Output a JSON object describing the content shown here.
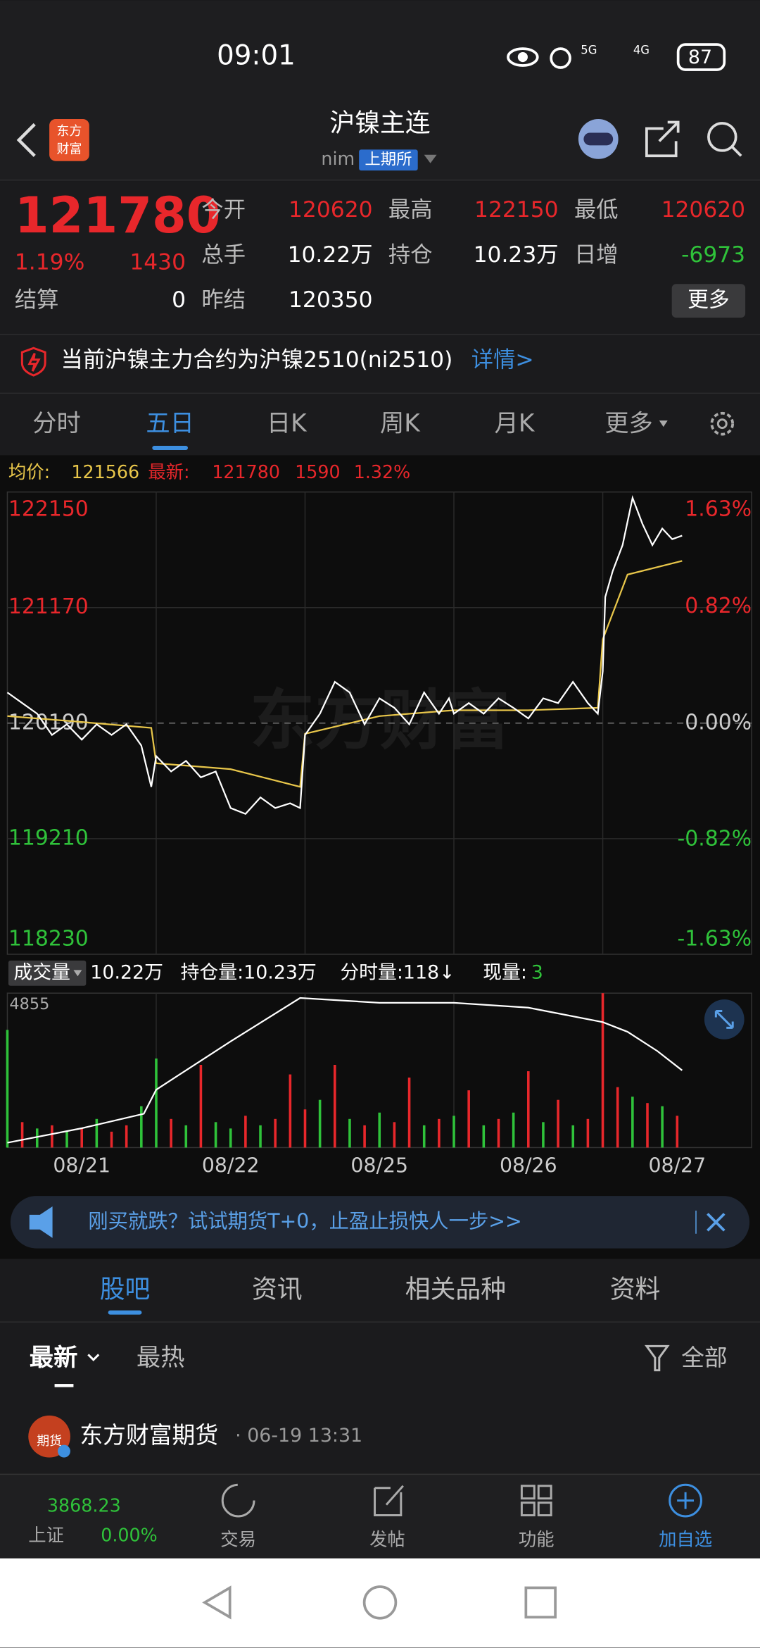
{
  "status": {
    "time": "09:01",
    "net1": "5G",
    "net2": "4G",
    "battery": "87"
  },
  "header": {
    "logo": [
      "东方",
      "财富"
    ],
    "title": "沪镍主连",
    "code": "nim",
    "exchange": "上期所"
  },
  "quote": {
    "price": "121780",
    "change_pct": "1.19%",
    "change": "1430",
    "fields": [
      {
        "label": "今开",
        "value": "120620"
      },
      {
        "label": "最高",
        "value": "122150"
      },
      {
        "label": "最低",
        "value": "120620"
      },
      {
        "label": "总手",
        "value": "10.22万"
      },
      {
        "label": "持仓",
        "value": "10.23万"
      },
      {
        "label": "日增",
        "value": "-6973"
      },
      {
        "label": "结算",
        "value": "0"
      },
      {
        "label": "昨结",
        "value": "120350"
      }
    ],
    "more": "更多"
  },
  "notice": {
    "text": "当前沪镍主力合约为沪镍2510(ni2510)",
    "link": "详情>"
  },
  "tabs": [
    "分时",
    "五日",
    "日K",
    "周K",
    "月K",
    "更多"
  ],
  "info": {
    "avg_label": "均价:",
    "avg": "121566",
    "last_label": "最新:",
    "last": "121780",
    "change": "1590",
    "pct": "1.32%"
  },
  "chart": {
    "watermark": "东方财富",
    "ylim": [
      118230,
      122150
    ],
    "yticks": [
      122150,
      121170,
      120190,
      119210,
      118230
    ],
    "y2lim": [
      -1.63,
      1.63
    ],
    "y2ticks": [
      {
        "value": 1.63,
        "label": "1.63%"
      },
      {
        "value": 0.82,
        "label": "0.82%"
      },
      {
        "value": 0,
        "label": "0.00%"
      },
      {
        "value": -0.82,
        "label": "-0.82%"
      },
      {
        "value": -1.63,
        "label": "-1.63%"
      }
    ],
    "xlim": [
      0,
      300
    ],
    "days": [
      "08/21",
      "08/22",
      "08/25",
      "08/26",
      "08/27"
    ],
    "price": {
      "color": "#ffffff",
      "x": [
        0,
        6,
        12,
        18,
        24,
        30,
        36,
        42,
        48,
        54,
        58,
        60,
        66,
        72,
        78,
        84,
        90,
        96,
        102,
        108,
        114,
        118,
        120,
        126,
        132,
        138,
        144,
        150,
        156,
        162,
        168,
        174,
        178,
        180,
        186,
        192,
        198,
        204,
        210,
        216,
        222,
        228,
        234,
        238,
        240,
        241,
        244,
        248,
        252,
        256,
        260,
        264,
        268,
        272
      ],
      "values": [
        120450,
        120360,
        120270,
        120090,
        120180,
        120050,
        120180,
        120090,
        120180,
        120000,
        119650,
        119910,
        119780,
        119870,
        119730,
        119780,
        119470,
        119420,
        119560,
        119470,
        119510,
        119470,
        120090,
        120270,
        120540,
        120450,
        120180,
        120400,
        120320,
        120180,
        120450,
        120270,
        120400,
        120270,
        120360,
        120270,
        120400,
        120320,
        120230,
        120400,
        120360,
        120540,
        120360,
        120270,
        120630,
        121260,
        121480,
        121700,
        122100,
        121880,
        121700,
        121840,
        121750,
        121780
      ]
    },
    "avg": {
      "color": "#e8c64a",
      "x": [
        0,
        30,
        58,
        60,
        90,
        118,
        120,
        150,
        180,
        210,
        238,
        240,
        250,
        272
      ],
      "values": [
        120250,
        120200,
        120150,
        119850,
        119800,
        119650,
        120100,
        120250,
        120300,
        120300,
        120320,
        120900,
        121450,
        121566
      ]
    }
  },
  "volume": {
    "label": "成交量",
    "total": "10.22万",
    "oi": "持仓量:10.23万",
    "tick_vol": "分时量:118↓",
    "now_label": "现量:",
    "now": "3",
    "ylim": [
      0,
      4855
    ],
    "yticks": [
      4855
    ],
    "x": [
      0,
      6,
      12,
      18,
      24,
      30,
      36,
      42,
      48,
      54,
      60,
      66,
      72,
      78,
      84,
      90,
      96,
      102,
      108,
      114,
      120,
      126,
      132,
      138,
      144,
      150,
      156,
      162,
      168,
      174,
      180,
      186,
      192,
      198,
      204,
      210,
      216,
      222,
      228,
      234,
      240,
      246,
      252,
      258,
      264,
      270
    ],
    "values": [
      3700,
      800,
      600,
      700,
      500,
      600,
      900,
      500,
      700,
      1300,
      2800,
      900,
      700,
      2600,
      800,
      600,
      1000,
      700,
      900,
      2300,
      1200,
      1500,
      2600,
      900,
      700,
      1100,
      800,
      2200,
      700,
      900,
      1000,
      1800,
      700,
      900,
      1100,
      2400,
      800,
      1500,
      700,
      900,
      4855,
      1900,
      1600,
      1400,
      1300,
      1000
    ],
    "up": [
      false,
      true,
      false,
      true,
      false,
      true,
      false,
      true,
      true,
      false,
      false,
      true,
      false,
      true,
      false,
      false,
      true,
      false,
      true,
      true,
      true,
      false,
      true,
      false,
      true,
      false,
      true,
      true,
      false,
      true,
      false,
      true,
      false,
      true,
      false,
      true,
      false,
      true,
      false,
      true,
      true,
      true,
      false,
      true,
      false,
      true
    ],
    "open_interest": {
      "color": "#ffffff",
      "ylim": [
        9.0,
        10.6
      ],
      "x": [
        0,
        30,
        55,
        60,
        90,
        118,
        150,
        180,
        210,
        240,
        250,
        262,
        272
      ],
      "values": [
        9.05,
        9.2,
        9.35,
        9.6,
        10.1,
        10.55,
        10.5,
        10.5,
        10.45,
        10.3,
        10.2,
        10.0,
        9.8
      ]
    }
  },
  "ad": "刚买就跌？试试期货T+0，止盈止损快人一步>>",
  "section_tabs": [
    "股吧",
    "资讯",
    "相关品种",
    "资料"
  ],
  "sort": [
    "最新",
    "最热"
  ],
  "filter": "全部",
  "post": {
    "avatar": "期货",
    "author": "东方财富期货",
    "time": "· 06-19 13:31"
  },
  "bottom_nav": {
    "index_value": "3868.23",
    "index_name": "上证",
    "index_pct": "0.00%",
    "items": [
      "交易",
      "发帖",
      "功能",
      "加自选"
    ]
  }
}
